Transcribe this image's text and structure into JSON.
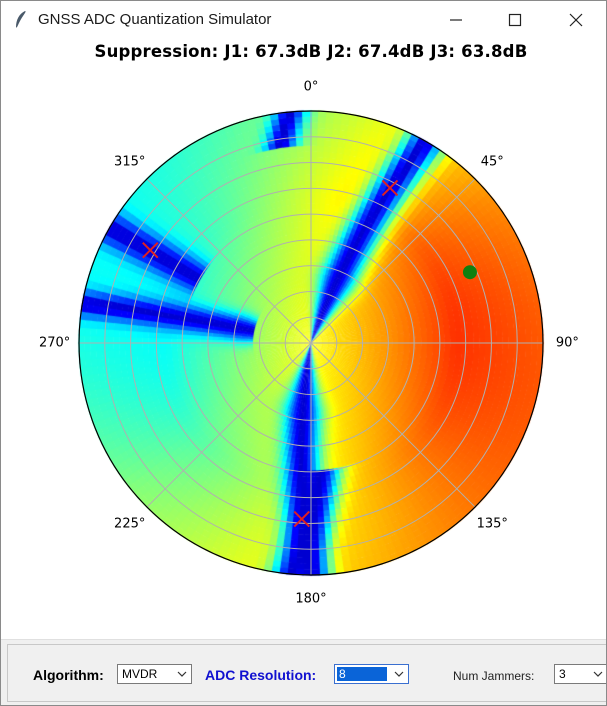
{
  "window": {
    "title": "GNSS ADC Quantization Simulator"
  },
  "plot": {
    "title": "Suppression: J1: 67.3dB  J2: 67.4dB  J3: 63.8dB",
    "angle_labels": [
      "0°",
      "45°",
      "90°",
      "135°",
      "180°",
      "225°",
      "270°",
      "315°"
    ],
    "colors": {
      "jammer_marker": "#e02020",
      "satellite_marker": "#108010",
      "grid": "#b0b0b0"
    },
    "colormap": "jet"
  },
  "chart_data": {
    "type": "heatmap",
    "projection": "polar",
    "theta_zero": "top",
    "theta_direction": "clockwise",
    "title": "Suppression: J1: 67.3dB  J2: 67.4dB  J3: 63.8dB",
    "theta_tick_labels": [
      "0°",
      "45°",
      "90°",
      "135°",
      "180°",
      "225°",
      "270°",
      "315°"
    ],
    "radial_ticks_visible": false,
    "grid": true,
    "jammers": [
      {
        "name": "J1",
        "azimuth_deg": 27,
        "radius": 0.75
      },
      {
        "name": "J2",
        "azimuth_deg": 183,
        "radius": 0.76
      },
      {
        "name": "J3",
        "azimuth_deg": 300,
        "radius": 0.8
      }
    ],
    "satellite": {
      "azimuth_deg": 66,
      "radius": 0.75
    }
  },
  "controls": {
    "algorithm_label": "Algorithm:",
    "algorithm_value": "MVDR",
    "adc_label": "ADC Resolution:",
    "adc_value": "8",
    "jammers_label": "Num Jammers:",
    "jammers_value": "3"
  }
}
